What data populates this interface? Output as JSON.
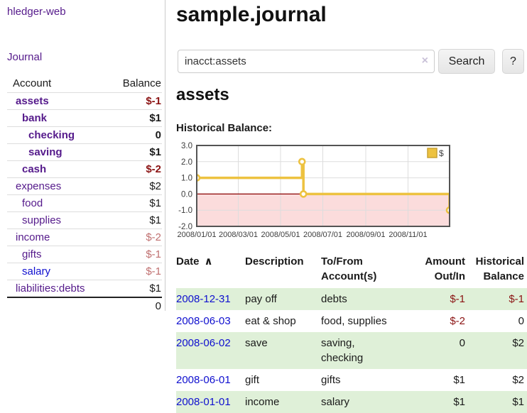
{
  "colors": {
    "link_purple": "#551a8b",
    "link_blue": "#0f0fcf",
    "negative_red": "#8b1313",
    "negative_soft_red": "#c07070",
    "row_stripe_green": "#dff0d8",
    "chart_line_gold": "#edc240",
    "chart_negative_fill": "#fbdcdc",
    "chart_zero_line": "#8b0000"
  },
  "sidebar": {
    "brand": "hledger-web",
    "journal_link": "Journal",
    "accounts_header": {
      "account": "Account",
      "balance": "Balance"
    },
    "accounts": [
      {
        "name": "assets",
        "indent": 0,
        "bold": true,
        "balance": "$-1",
        "balance_class": "neg"
      },
      {
        "name": "bank",
        "indent": 1,
        "bold": true,
        "balance": "$1",
        "balance_class": ""
      },
      {
        "name": "checking",
        "indent": 2,
        "bold": true,
        "balance": "0",
        "balance_class": ""
      },
      {
        "name": "saving",
        "indent": 2,
        "bold": true,
        "balance": "$1",
        "balance_class": ""
      },
      {
        "name": "cash",
        "indent": 1,
        "bold": true,
        "balance": "$-2",
        "balance_class": "neg"
      },
      {
        "name": "expenses",
        "indent": 0,
        "bold": false,
        "balance": "$2",
        "balance_class": ""
      },
      {
        "name": "food",
        "indent": 1,
        "bold": false,
        "balance": "$1",
        "balance_class": ""
      },
      {
        "name": "supplies",
        "indent": 1,
        "bold": false,
        "balance": "$1",
        "balance_class": ""
      },
      {
        "name": "income",
        "indent": 0,
        "bold": false,
        "balance": "$-2",
        "balance_class": "neg-soft"
      },
      {
        "name": "gifts",
        "indent": 1,
        "bold": false,
        "balance": "$-1",
        "balance_class": "neg-soft"
      },
      {
        "name": "salary",
        "indent": 1,
        "bold": false,
        "blue": true,
        "balance": "$-1",
        "balance_class": "neg-soft"
      },
      {
        "name": "liabilities:debts",
        "indent": 0,
        "bold": false,
        "balance": "$1",
        "balance_class": ""
      }
    ],
    "total": "0"
  },
  "header": {
    "title": "sample.journal"
  },
  "search": {
    "value": "inacct:assets",
    "clear_icon": "×",
    "button_label": "Search",
    "help_label": "?"
  },
  "account_page": {
    "heading": "assets",
    "chart_label": "Historical Balance:"
  },
  "chart_data": {
    "type": "line",
    "title": "Historical Balance",
    "legend": {
      "label": "$",
      "position": "top-right"
    },
    "step": true,
    "series": [
      {
        "name": "$",
        "color": "#edc240",
        "points": [
          {
            "date": "2008/01/01",
            "day": 0,
            "value": 1
          },
          {
            "date": "2008/06/01",
            "day": 152,
            "value": 2
          },
          {
            "date": "2008/06/03",
            "day": 154,
            "value": 0
          },
          {
            "date": "2008/12/31",
            "day": 365,
            "value": -1
          }
        ]
      }
    ],
    "x_ticks": [
      {
        "label": "2008/01/01",
        "day": 0
      },
      {
        "label": "2008/03/01",
        "day": 60
      },
      {
        "label": "2008/05/01",
        "day": 121
      },
      {
        "label": "2008/07/01",
        "day": 182
      },
      {
        "label": "2008/09/01",
        "day": 244
      },
      {
        "label": "2008/11/01",
        "day": 305
      }
    ],
    "y_ticks": [
      3.0,
      2.0,
      1.0,
      0.0,
      -1.0,
      -2.0
    ],
    "ylim": [
      -2,
      3
    ],
    "xlim_days": [
      0,
      365
    ],
    "grid": true,
    "negative_region_fill": "#fbdcdc",
    "zero_line_color": "#8b0000",
    "border_color": "#545454",
    "grid_color": "#dddddd"
  },
  "register_table": {
    "columns": [
      {
        "lines": [
          "Date"
        ],
        "align": "left",
        "sort_indicator": "∧"
      },
      {
        "lines": [
          "Description"
        ],
        "align": "left"
      },
      {
        "lines": [
          "To/From",
          "Account(s)"
        ],
        "align": "left"
      },
      {
        "lines": [
          "Amount",
          "Out/In"
        ],
        "align": "right"
      },
      {
        "lines": [
          "Historical",
          "Balance"
        ],
        "align": "right"
      }
    ],
    "rows": [
      {
        "date": "2008-12-31",
        "description": "pay off",
        "accounts": "debts",
        "amount": "$-1",
        "amount_class": "neg",
        "balance": "$-1",
        "balance_class": "neg",
        "shaded": true
      },
      {
        "date": "2008-06-03",
        "description": "eat & shop",
        "accounts": "food, supplies",
        "amount": "$-2",
        "amount_class": "neg",
        "balance": "0",
        "balance_class": "",
        "shaded": false
      },
      {
        "date": "2008-06-02",
        "description": "save",
        "accounts": "saving, checking",
        "amount": "0",
        "amount_class": "",
        "balance": "$2",
        "balance_class": "",
        "shaded": true
      },
      {
        "date": "2008-06-01",
        "description": "gift",
        "accounts": "gifts",
        "amount": "$1",
        "amount_class": "",
        "balance": "$2",
        "balance_class": "",
        "shaded": false
      },
      {
        "date": "2008-01-01",
        "description": "income",
        "accounts": "salary",
        "amount": "$1",
        "amount_class": "",
        "balance": "$1",
        "balance_class": "",
        "shaded": true
      }
    ]
  }
}
